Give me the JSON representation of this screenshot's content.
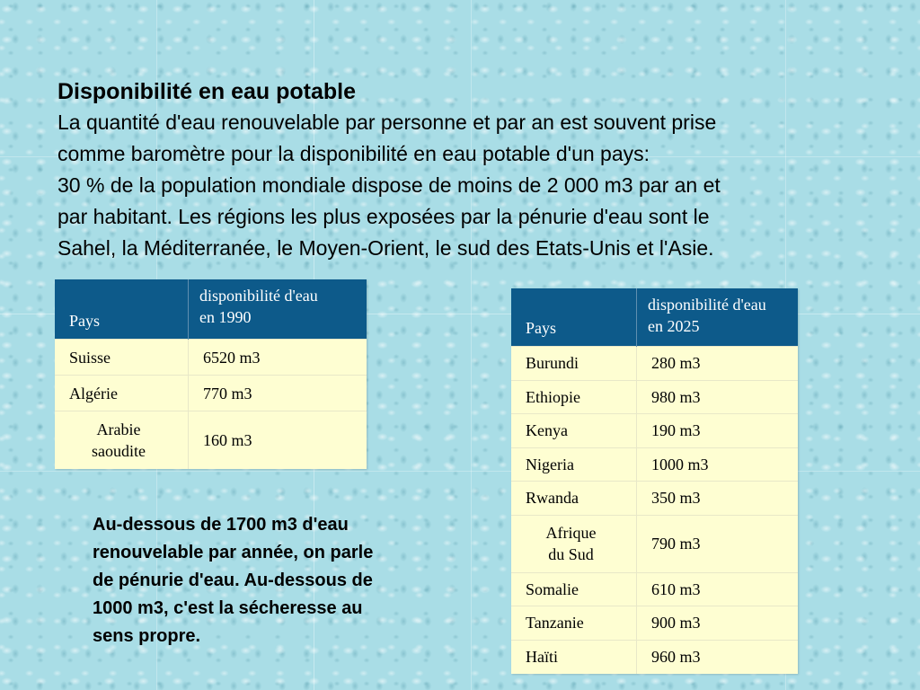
{
  "title": "Disponibilité en eau potable",
  "intro_lines": [
    "La quantité d'eau renouvelable par personne et par an est souvent prise",
    "comme baromètre pour la disponibilité en eau potable d'un pays:",
    "30 % de la population mondiale dispose de moins de 2 000 m3 par an et",
    "par habitant. Les régions les plus exposées par la pénurie d'eau sont le",
    "Sahel, la Méditerranée, le Moyen-Orient, le sud des Etats-Unis et l'Asie."
  ],
  "table_1990": {
    "header_country": "Pays",
    "header_value_line1": "disponibilité d'eau",
    "header_value_line2": "en 1990",
    "rows": [
      {
        "country": "Suisse",
        "value": "6520 m3"
      },
      {
        "country": "Algérie",
        "value": "770 m3"
      },
      {
        "country_line1": "Arabie",
        "country_line2": "saoudite",
        "value": "160 m3"
      }
    ]
  },
  "table_2025": {
    "header_country": "Pays",
    "header_value_line1": "disponibilité d'eau",
    "header_value_line2": "en 2025",
    "rows": [
      {
        "country": "Burundi",
        "value": "280 m3"
      },
      {
        "country": "Ethiopie",
        "value": "980 m3"
      },
      {
        "country": "Kenya",
        "value": "190 m3"
      },
      {
        "country": "Nigeria",
        "value": "1000 m3"
      },
      {
        "country": "Rwanda",
        "value": "350 m3"
      },
      {
        "country_line1": "Afrique",
        "country_line2": "du Sud",
        "value": "790 m3"
      },
      {
        "country": "Somalie",
        "value": "610 m3"
      },
      {
        "country": "Tanzanie",
        "value": "900 m3"
      },
      {
        "country": "Haïti",
        "value": "960 m3"
      }
    ]
  },
  "note_lines": [
    "Au-dessous de 1700 m3 d'eau",
    "renouvelable par année, on parle",
    "de pénurie d'eau. Au-dessous de",
    "1000 m3, c'est la sécheresse au",
    "sens propre."
  ]
}
